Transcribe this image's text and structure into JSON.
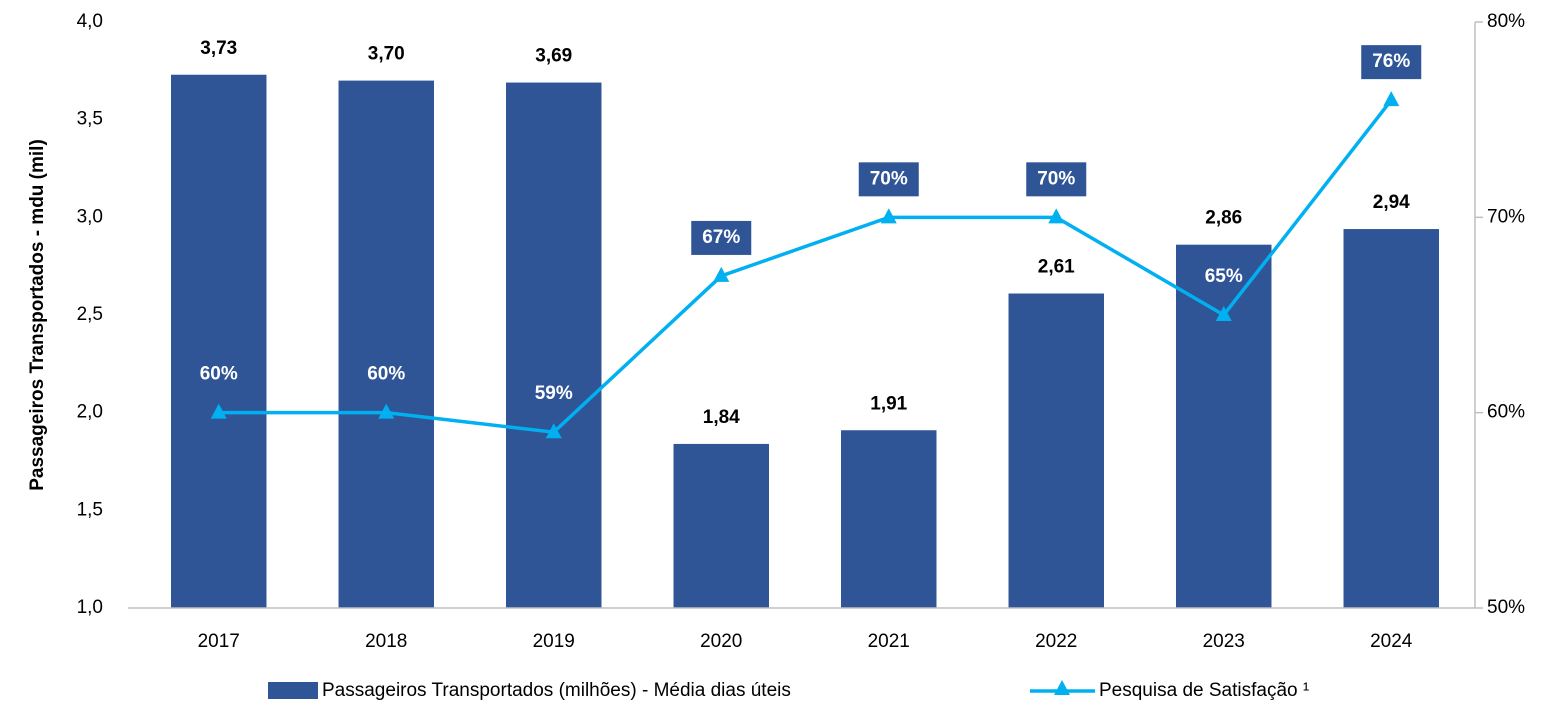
{
  "chart_data": {
    "type": "bar_line",
    "y_axis_label": "Passageiros Transportados - mdu (mil)",
    "categories": [
      "2017",
      "2018",
      "2019",
      "2020",
      "2021",
      "2022",
      "2023",
      "2024"
    ],
    "series": [
      {
        "name": "Passageiros Transportados (milhões) - Média dias úteis",
        "type": "bar",
        "color": "#2f5597",
        "values": [
          3.73,
          3.7,
          3.69,
          1.84,
          1.91,
          2.61,
          2.86,
          2.94
        ],
        "value_labels": [
          "3,73",
          "3,70",
          "3,69",
          "1,84",
          "1,91",
          "2,61",
          "2,86",
          "2,94"
        ]
      },
      {
        "name": "Pesquisa de Satisfação ¹",
        "type": "line",
        "axis": "y2",
        "color": "#00b0f0",
        "values": [
          60,
          60,
          59,
          67,
          70,
          70,
          65,
          76
        ],
        "value_labels": [
          "60%",
          "60%",
          "59%",
          "67%",
          "70%",
          "70%",
          "65%",
          "76%"
        ]
      }
    ],
    "ylim": [
      1.0,
      4.0
    ],
    "yticks": [
      {
        "value": 1.0,
        "label": "1,0"
      },
      {
        "value": 1.5,
        "label": "1,5"
      },
      {
        "value": 2.0,
        "label": "2,0"
      },
      {
        "value": 2.5,
        "label": "2,5"
      },
      {
        "value": 3.0,
        "label": "3,0"
      },
      {
        "value": 3.5,
        "label": "3,5"
      },
      {
        "value": 4.0,
        "label": "4,0"
      }
    ],
    "y2lim": [
      50,
      80
    ],
    "y2ticks": [
      {
        "value": 50,
        "label": "50%"
      },
      {
        "value": 60,
        "label": "60%"
      },
      {
        "value": 70,
        "label": "70%"
      },
      {
        "value": 80,
        "label": "80%"
      }
    ],
    "legend": "bottom"
  }
}
